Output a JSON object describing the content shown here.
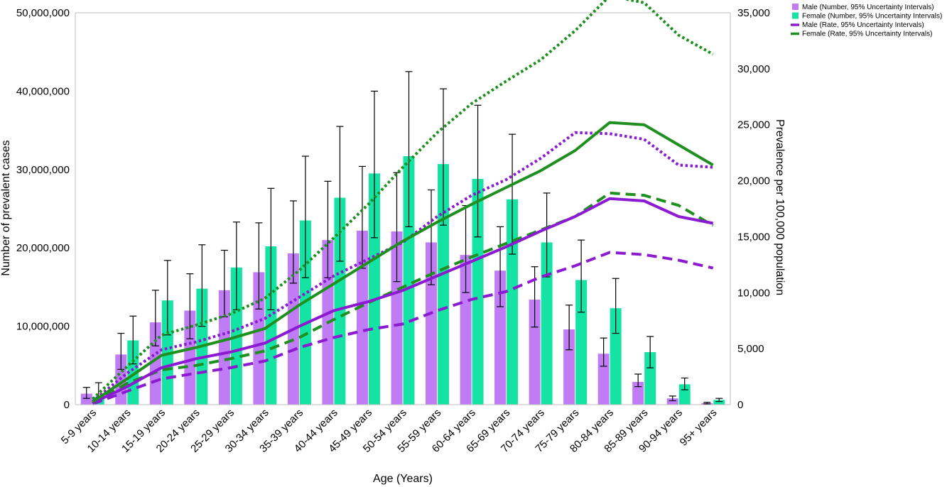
{
  "chart_data": {
    "type": "bar",
    "categories": [
      "5-9 years",
      "10-14 years",
      "15-19 years",
      "20-24 years",
      "25-29 years",
      "30-34 years",
      "35-39 years",
      "40-44 years",
      "45-49 years",
      "50-54 years",
      "55-59 years",
      "60-64 years",
      "65-69 years",
      "70-74 years",
      "75-79 years",
      "80-84 years",
      "85-89 years",
      "90-94 years",
      "95+ years"
    ],
    "xlabel": "Age (Years)",
    "ylabel": "Number of prevalent cases",
    "y2label": "Prevalence per 100,000 population",
    "ylim": [
      0,
      50000000
    ],
    "y2lim": [
      0,
      35000
    ],
    "yticks": [
      "0",
      "10,000,000",
      "20,000,000",
      "30,000,000",
      "40,000,000",
      "50,000,000"
    ],
    "y2ticks": [
      "0",
      "5,000",
      "10,000",
      "15,000",
      "20,000",
      "25,000",
      "30,000",
      "35,000"
    ],
    "grid": false,
    "legend_position": "top-right",
    "legend": [
      "Male (Number, 95% Uncertainty Intervals)",
      "Female (Number, 95% Uncertainty Intervals)",
      "Male (Rate, 95% Uncertainty Intervals)",
      "Female (Rate, 95% Uncertainty Intervals)"
    ],
    "colors": {
      "male_bar": "#bf7cf5",
      "female_bar": "#14e3a4",
      "male_line": "#8b1ad0",
      "female_line": "#1f8f1f"
    },
    "bars": [
      {
        "name": "Male (Number, 95% Uncertainty Intervals)",
        "values": [
          1400000,
          6400000,
          10500000,
          12000000,
          14600000,
          16900000,
          19300000,
          21000000,
          22200000,
          22100000,
          20700000,
          19100000,
          17100000,
          13400000,
          9600000,
          6500000,
          2900000,
          800000,
          200000
        ],
        "lower": [
          800000,
          4500000,
          7500000,
          8400000,
          11200000,
          12200000,
          15500000,
          16200000,
          17400000,
          15700000,
          15300000,
          14300000,
          12500000,
          9900000,
          7000000,
          4900000,
          2300000,
          500000,
          100000
        ],
        "upper": [
          2200000,
          9100000,
          14600000,
          16700000,
          19700000,
          23200000,
          26000000,
          28500000,
          30400000,
          29600000,
          27400000,
          25400000,
          22700000,
          17600000,
          12700000,
          8500000,
          3900000,
          1100000,
          300000
        ]
      },
      {
        "name": "Female (Number, 95% Uncertainty Intervals)",
        "values": [
          1000000,
          8200000,
          13300000,
          14800000,
          17500000,
          20200000,
          23500000,
          26400000,
          29500000,
          31700000,
          30700000,
          28800000,
          26200000,
          20700000,
          15900000,
          12300000,
          6700000,
          2600000,
          600000
        ],
        "lower": [
          500000,
          5200000,
          8900000,
          10000000,
          12100000,
          12100000,
          16200000,
          18300000,
          21300000,
          22700000,
          22900000,
          21400000,
          19200000,
          16300000,
          11800000,
          9100000,
          4700000,
          1900000,
          400000
        ],
        "upper": [
          2800000,
          11300000,
          18400000,
          20400000,
          23300000,
          27600000,
          31700000,
          35500000,
          40000000,
          42500000,
          40300000,
          38200000,
          34500000,
          27000000,
          21000000,
          16100000,
          8700000,
          3400000,
          800000
        ]
      }
    ],
    "lines": [
      {
        "name": "Male (Rate, 95% Uncertainty Intervals)",
        "values": [
          150,
          1600,
          3300,
          4100,
          4700,
          5500,
          7000,
          8400,
          9200,
          10200,
          11500,
          12800,
          14100,
          15500,
          16800,
          18400,
          18200,
          16800,
          16200
        ]
      },
      {
        "name": "Female (Rate, 95% Uncertainty Intervals)",
        "values": [
          250,
          2300,
          4400,
          5100,
          5900,
          6800,
          8900,
          10800,
          12700,
          14600,
          16300,
          17900,
          19400,
          20900,
          22700,
          25200,
          25000,
          23200,
          21400
        ]
      }
    ],
    "line_bounds": [
      {
        "series": "Male (Rate, 95% Uncertainty Intervals)",
        "lower": [
          50,
          1200,
          2300,
          2800,
          3300,
          3900,
          5100,
          6000,
          6700,
          7200,
          8400,
          9400,
          10100,
          11400,
          12400,
          13600,
          13400,
          12900,
          12200
        ],
        "upper": [
          300,
          2800,
          4900,
          5600,
          6500,
          7700,
          9600,
          11500,
          13000,
          14500,
          16800,
          18700,
          20100,
          22000,
          24300,
          24200,
          23700,
          21400,
          21200
        ]
      },
      {
        "series": "Female (Rate, 95% Uncertainty Intervals)",
        "lower": [
          100,
          1900,
          3100,
          3500,
          4100,
          4800,
          6000,
          7600,
          9100,
          10500,
          11900,
          13200,
          14400,
          15600,
          16800,
          18900,
          18700,
          17800,
          16000
        ],
        "upper": [
          500,
          3400,
          6200,
          7100,
          8100,
          9500,
          12000,
          14900,
          17900,
          21200,
          24300,
          26900,
          28900,
          30800,
          33400,
          36500,
          35900,
          33000,
          31300
        ]
      }
    ]
  }
}
